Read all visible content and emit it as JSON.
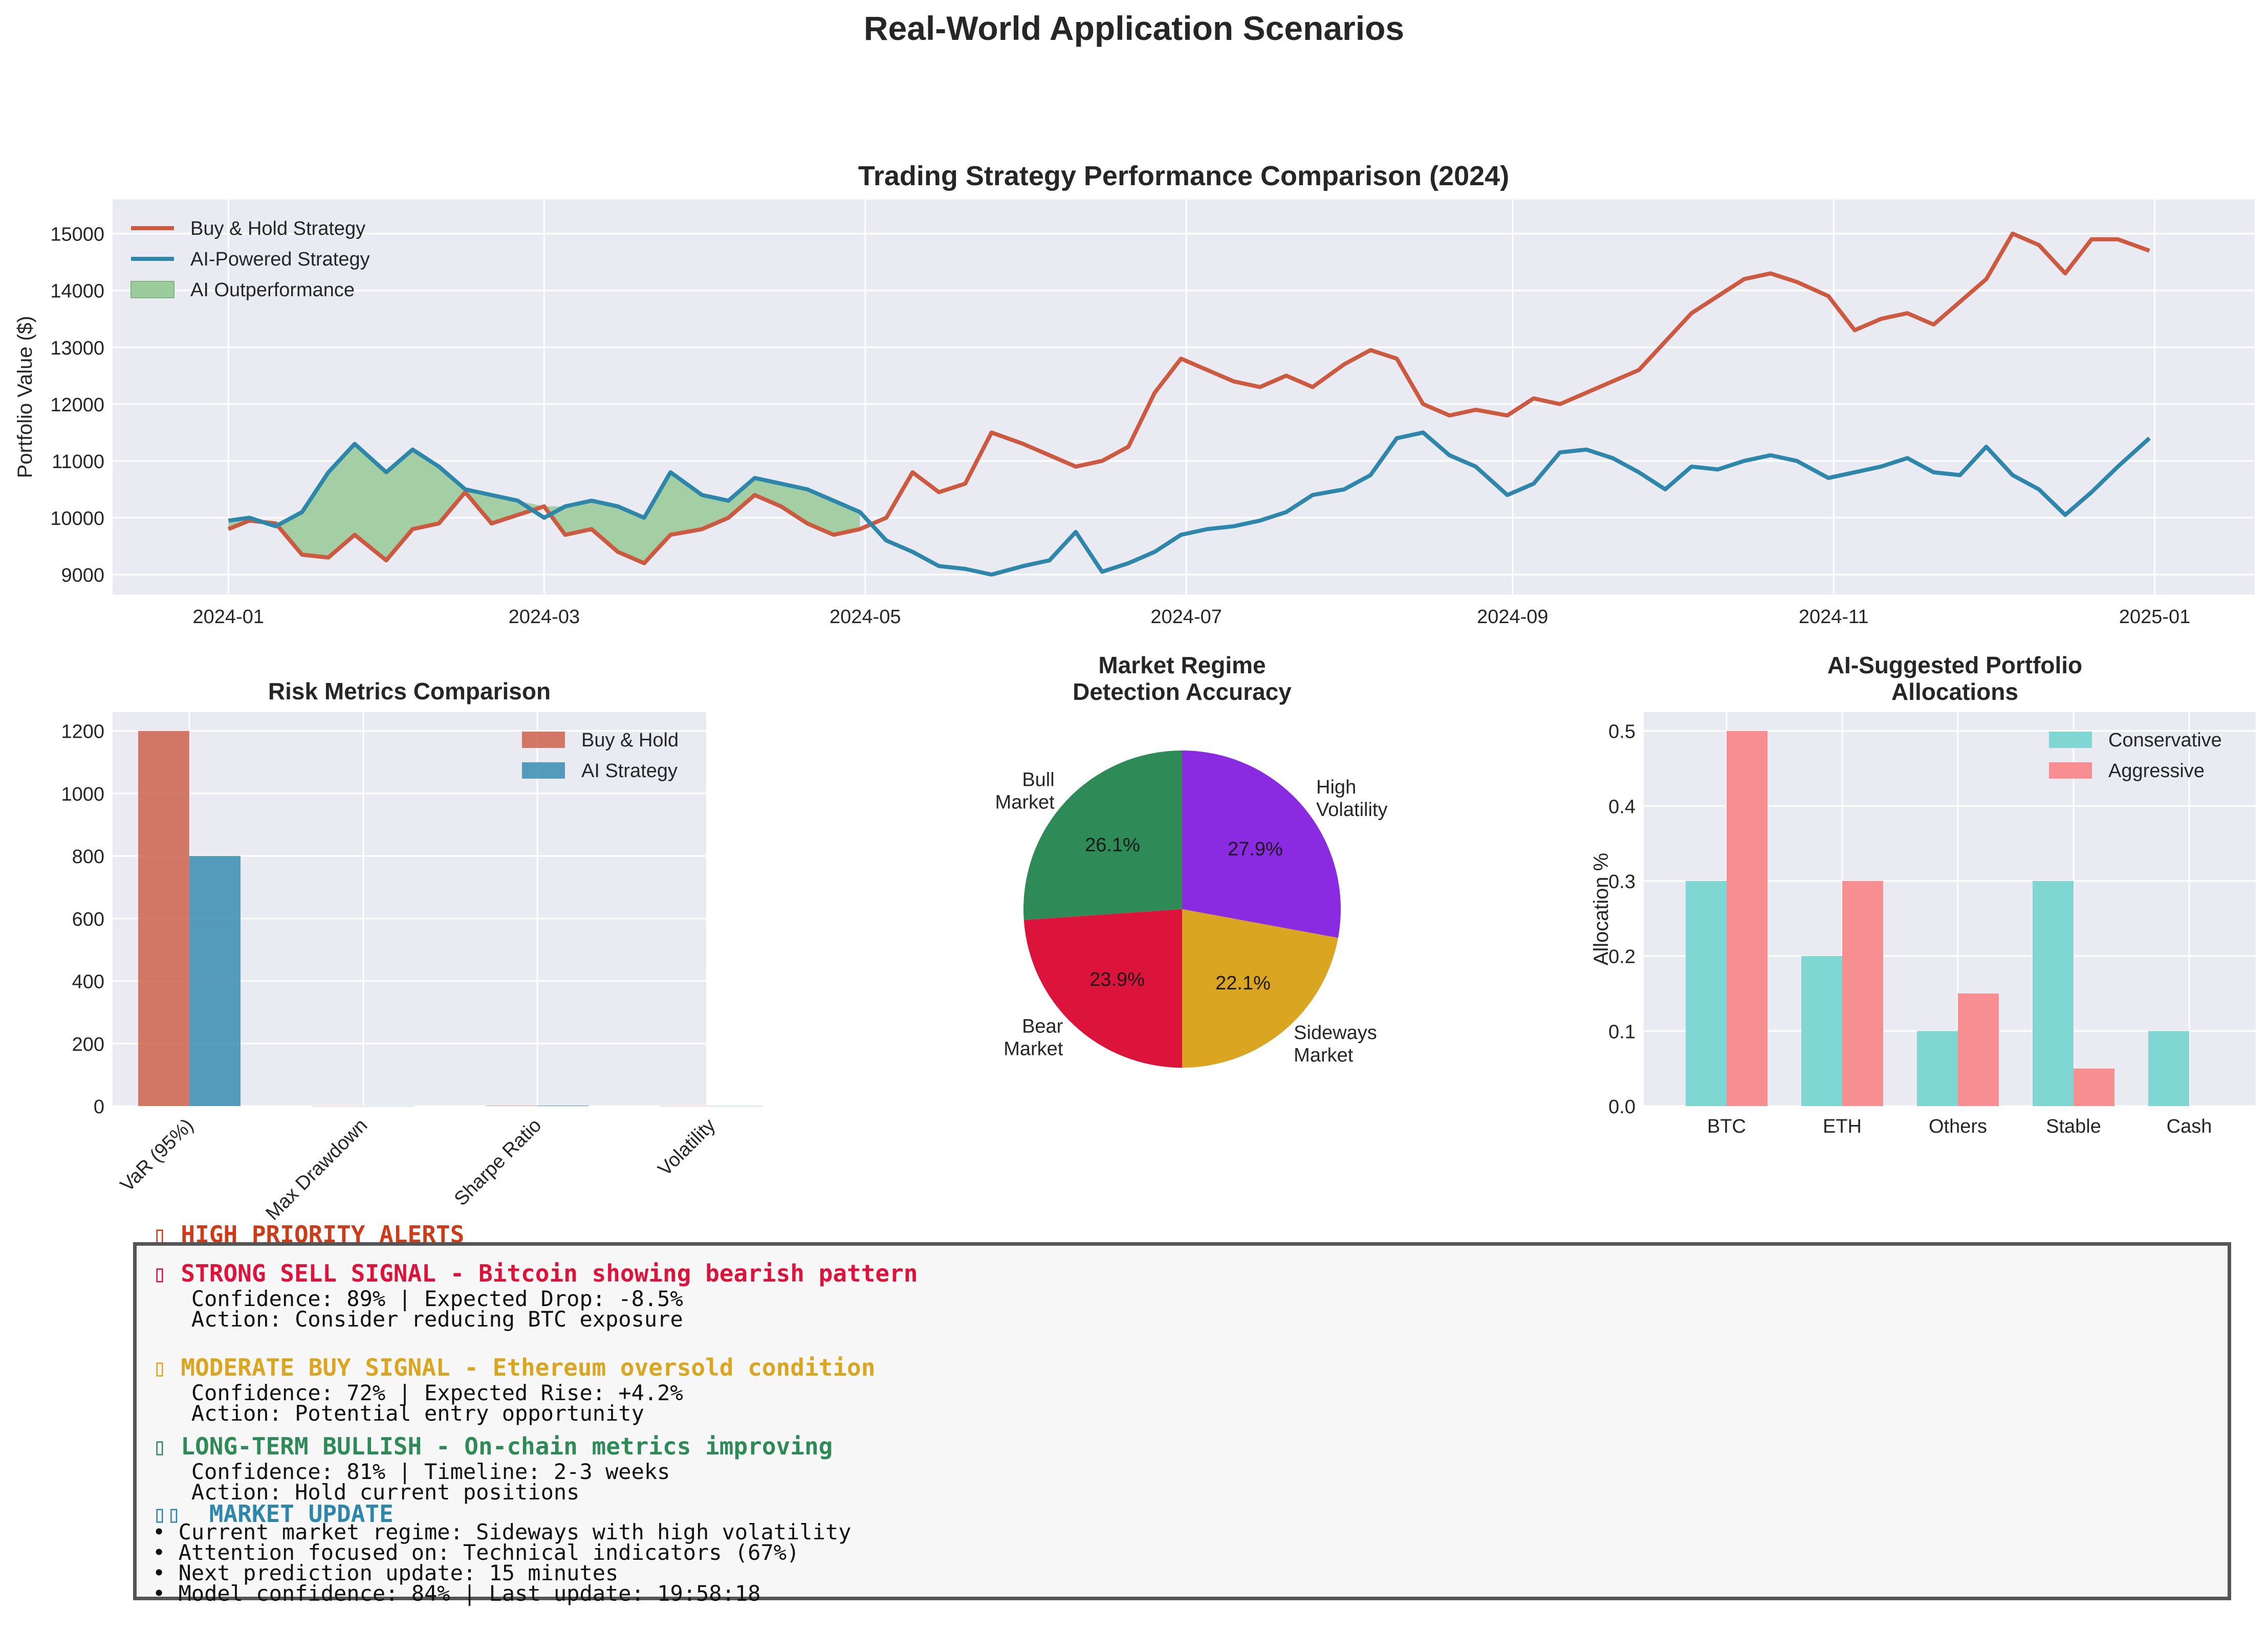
{
  "title": "Real-World Application Scenarios",
  "colors": {
    "buy_hold": "#cc5a41",
    "ai": "#2e86ab",
    "outperf_fill": "#9ccc9c",
    "panel_bg": "#eaeaf2",
    "grid": "#ffffff",
    "conservative": "#7fd6d2",
    "aggressive": "#f78f92",
    "bull": "#2e8b57",
    "high_vol": "#8a2be2",
    "sideways": "#daa520",
    "bear": "#dc143c",
    "alert_red": "#dc143c",
    "alert_orange": "#cc3c1a",
    "alert_gold": "#daa520",
    "alert_green": "#2e8b57",
    "alert_blue": "#2e86ab"
  },
  "chart_data": [
    {
      "type": "line",
      "title": "Trading Strategy Performance Comparison (2024)",
      "ylabel": "Portfolio Value ($)",
      "xlabel": "",
      "xlim": [
        "2023-12-10",
        "2025-01-20"
      ],
      "ylim": [
        8650,
        15600
      ],
      "x_ticks": [
        "2024-01",
        "2024-03",
        "2024-05",
        "2024-07",
        "2024-09",
        "2024-11",
        "2025-01"
      ],
      "y_ticks": [
        9000,
        10000,
        11000,
        12000,
        13000,
        14000,
        15000
      ],
      "grid": true,
      "legend": "top-left",
      "legend_entries": [
        "Buy & Hold Strategy",
        "AI-Powered Strategy",
        "AI Outperformance"
      ],
      "series": [
        {
          "name": "Buy & Hold Strategy",
          "points": [
            [
              "2024-01-01",
              9800
            ],
            [
              "2024-01-05",
              9950
            ],
            [
              "2024-01-10",
              9900
            ],
            [
              "2024-01-15",
              9350
            ],
            [
              "2024-01-20",
              9300
            ],
            [
              "2024-01-25",
              9700
            ],
            [
              "2024-01-31",
              9250
            ],
            [
              "2024-02-05",
              9800
            ],
            [
              "2024-02-10",
              9900
            ],
            [
              "2024-02-15",
              10450
            ],
            [
              "2024-02-20",
              9900
            ],
            [
              "2024-02-25",
              10050
            ],
            [
              "2024-03-01",
              10200
            ],
            [
              "2024-03-05",
              9700
            ],
            [
              "2024-03-10",
              9800
            ],
            [
              "2024-03-15",
              9400
            ],
            [
              "2024-03-20",
              9200
            ],
            [
              "2024-03-25",
              9700
            ],
            [
              "2024-03-31",
              9800
            ],
            [
              "2024-04-05",
              10000
            ],
            [
              "2024-04-10",
              10400
            ],
            [
              "2024-04-15",
              10200
            ],
            [
              "2024-04-20",
              9900
            ],
            [
              "2024-04-25",
              9700
            ],
            [
              "2024-04-30",
              9800
            ],
            [
              "2024-05-05",
              10000
            ],
            [
              "2024-05-10",
              10800
            ],
            [
              "2024-05-15",
              10450
            ],
            [
              "2024-05-20",
              10600
            ],
            [
              "2024-05-25",
              11500
            ],
            [
              "2024-05-31",
              11300
            ],
            [
              "2024-06-05",
              11100
            ],
            [
              "2024-06-10",
              10900
            ],
            [
              "2024-06-15",
              11000
            ],
            [
              "2024-06-20",
              11250
            ],
            [
              "2024-06-25",
              12200
            ],
            [
              "2024-06-30",
              12800
            ],
            [
              "2024-07-05",
              12600
            ],
            [
              "2024-07-10",
              12400
            ],
            [
              "2024-07-15",
              12300
            ],
            [
              "2024-07-20",
              12500
            ],
            [
              "2024-07-25",
              12300
            ],
            [
              "2024-07-31",
              12700
            ],
            [
              "2024-08-05",
              12950
            ],
            [
              "2024-08-10",
              12800
            ],
            [
              "2024-08-15",
              12000
            ],
            [
              "2024-08-20",
              11800
            ],
            [
              "2024-08-25",
              11900
            ],
            [
              "2024-08-31",
              11800
            ],
            [
              "2024-09-05",
              12100
            ],
            [
              "2024-09-10",
              12000
            ],
            [
              "2024-09-15",
              12200
            ],
            [
              "2024-09-20",
              12400
            ],
            [
              "2024-09-25",
              12600
            ],
            [
              "2024-09-30",
              13100
            ],
            [
              "2024-10-05",
              13600
            ],
            [
              "2024-10-10",
              13900
            ],
            [
              "2024-10-15",
              14200
            ],
            [
              "2024-10-20",
              14300
            ],
            [
              "2024-10-25",
              14150
            ],
            [
              "2024-10-31",
              13900
            ],
            [
              "2024-11-05",
              13300
            ],
            [
              "2024-11-10",
              13500
            ],
            [
              "2024-11-15",
              13600
            ],
            [
              "2024-11-20",
              13400
            ],
            [
              "2024-11-25",
              13800
            ],
            [
              "2024-11-30",
              14200
            ],
            [
              "2024-12-05",
              15000
            ],
            [
              "2024-12-10",
              14800
            ],
            [
              "2024-12-15",
              14300
            ],
            [
              "2024-12-20",
              14900
            ],
            [
              "2024-12-25",
              14900
            ],
            [
              "2024-12-31",
              14700
            ]
          ]
        },
        {
          "name": "AI-Powered Strategy",
          "points": [
            [
              "2024-01-01",
              9950
            ],
            [
              "2024-01-05",
              10000
            ],
            [
              "2024-01-10",
              9850
            ],
            [
              "2024-01-15",
              10100
            ],
            [
              "2024-01-20",
              10800
            ],
            [
              "2024-01-25",
              11300
            ],
            [
              "2024-01-31",
              10800
            ],
            [
              "2024-02-05",
              11200
            ],
            [
              "2024-02-10",
              10900
            ],
            [
              "2024-02-15",
              10500
            ],
            [
              "2024-02-20",
              10400
            ],
            [
              "2024-02-25",
              10300
            ],
            [
              "2024-03-01",
              10000
            ],
            [
              "2024-03-05",
              10200
            ],
            [
              "2024-03-10",
              10300
            ],
            [
              "2024-03-15",
              10200
            ],
            [
              "2024-03-20",
              10000
            ],
            [
              "2024-03-25",
              10800
            ],
            [
              "2024-03-31",
              10400
            ],
            [
              "2024-04-05",
              10300
            ],
            [
              "2024-04-10",
              10700
            ],
            [
              "2024-04-15",
              10600
            ],
            [
              "2024-04-20",
              10500
            ],
            [
              "2024-04-25",
              10300
            ],
            [
              "2024-04-30",
              10100
            ],
            [
              "2024-05-05",
              9600
            ],
            [
              "2024-05-10",
              9400
            ],
            [
              "2024-05-15",
              9150
            ],
            [
              "2024-05-20",
              9100
            ],
            [
              "2024-05-25",
              9000
            ],
            [
              "2024-05-31",
              9150
            ],
            [
              "2024-06-05",
              9250
            ],
            [
              "2024-06-10",
              9750
            ],
            [
              "2024-06-15",
              9050
            ],
            [
              "2024-06-20",
              9200
            ],
            [
              "2024-06-25",
              9400
            ],
            [
              "2024-06-30",
              9700
            ],
            [
              "2024-07-05",
              9800
            ],
            [
              "2024-07-10",
              9850
            ],
            [
              "2024-07-15",
              9950
            ],
            [
              "2024-07-20",
              10100
            ],
            [
              "2024-07-25",
              10400
            ],
            [
              "2024-07-31",
              10500
            ],
            [
              "2024-08-05",
              10750
            ],
            [
              "2024-08-10",
              11400
            ],
            [
              "2024-08-15",
              11500
            ],
            [
              "2024-08-20",
              11100
            ],
            [
              "2024-08-25",
              10900
            ],
            [
              "2024-08-31",
              10400
            ],
            [
              "2024-09-05",
              10600
            ],
            [
              "2024-09-10",
              11150
            ],
            [
              "2024-09-15",
              11200
            ],
            [
              "2024-09-20",
              11050
            ],
            [
              "2024-09-25",
              10800
            ],
            [
              "2024-09-30",
              10500
            ],
            [
              "2024-10-05",
              10900
            ],
            [
              "2024-10-10",
              10850
            ],
            [
              "2024-10-15",
              11000
            ],
            [
              "2024-10-20",
              11100
            ],
            [
              "2024-10-25",
              11000
            ],
            [
              "2024-10-31",
              10700
            ],
            [
              "2024-11-05",
              10800
            ],
            [
              "2024-11-10",
              10900
            ],
            [
              "2024-11-15",
              11050
            ],
            [
              "2024-11-20",
              10800
            ],
            [
              "2024-11-25",
              10750
            ],
            [
              "2024-11-30",
              11250
            ],
            [
              "2024-12-05",
              10750
            ],
            [
              "2024-12-10",
              10500
            ],
            [
              "2024-12-15",
              10050
            ],
            [
              "2024-12-20",
              10450
            ],
            [
              "2024-12-25",
              10900
            ],
            [
              "2024-12-31",
              11400
            ]
          ]
        }
      ],
      "fill_between": {
        "name": "AI Outperformance",
        "where": "AI-Powered Strategy > Buy & Hold Strategy",
        "range": [
          "2024-01-01",
          "2024-04-30"
        ]
      }
    },
    {
      "type": "bar",
      "title": "Risk Metrics Comparison",
      "categories": [
        "VaR (95%)",
        "Max Drawdown",
        "Sharpe Ratio",
        "Volatility"
      ],
      "series": [
        {
          "name": "Buy & Hold",
          "values": [
            1200,
            0.25,
            1.2,
            0.3
          ]
        },
        {
          "name": "AI Strategy",
          "values": [
            800,
            0.15,
            1.8,
            0.2
          ]
        }
      ],
      "ylim": [
        0,
        1260
      ],
      "y_ticks": [
        0,
        200,
        400,
        600,
        800,
        1000,
        1200
      ],
      "legend": "top-right",
      "grid": true
    },
    {
      "type": "pie",
      "title": "Market Regime\nDetection Accuracy",
      "slices": [
        {
          "label": "Bull\nMarket",
          "value": 26.1,
          "pct": "26.1%"
        },
        {
          "label": "Bear\nMarket",
          "value": 23.9,
          "pct": "23.9%"
        },
        {
          "label": "Sideways\nMarket",
          "value": 22.1,
          "pct": "22.1%"
        },
        {
          "label": "High\nVolatility",
          "value": 27.9,
          "pct": "27.9%"
        }
      ]
    },
    {
      "type": "bar",
      "title": "AI-Suggested Portfolio\nAllocations",
      "ylabel": "Allocation %",
      "categories": [
        "BTC",
        "ETH",
        "Others",
        "Stable",
        "Cash"
      ],
      "series": [
        {
          "name": "Conservative",
          "values": [
            0.3,
            0.2,
            0.1,
            0.3,
            0.1
          ]
        },
        {
          "name": "Aggressive",
          "values": [
            0.5,
            0.3,
            0.15,
            0.05,
            0.0
          ]
        }
      ],
      "ylim": [
        0,
        0.525
      ],
      "y_ticks": [
        "0.0",
        "0.1",
        "0.2",
        "0.3",
        "0.4",
        "0.5"
      ],
      "legend": "top-right",
      "grid": true
    }
  ],
  "alerts": {
    "header": "▯ HIGH PRIORITY ALERTS",
    "items": [
      {
        "title": "▯ STRONG SELL SIGNAL - Bitcoin showing bearish pattern",
        "line1": "   Confidence: 89% | Expected Drop: -8.5%",
        "line2": "   Action: Consider reducing BTC exposure"
      },
      {
        "title": "▯ MODERATE BUY SIGNAL - Ethereum oversold condition",
        "line1": "   Confidence: 72% | Expected Rise: +4.2%",
        "line2": "   Action: Potential entry opportunity"
      },
      {
        "title": "▯ LONG-TERM BULLISH - On-chain metrics improving",
        "line1": "   Confidence: 81% | Timeline: 2-3 weeks",
        "line2": "   Action: Hold current positions"
      }
    ],
    "update_title": "▯▯  MARKET UPDATE",
    "update_lines": [
      "• Current market regime: Sideways with high volatility",
      "• Attention focused on: Technical indicators (67%)",
      "• Next prediction update: 15 minutes",
      "• Model confidence: 84% | Last update: 19:58:18"
    ]
  }
}
